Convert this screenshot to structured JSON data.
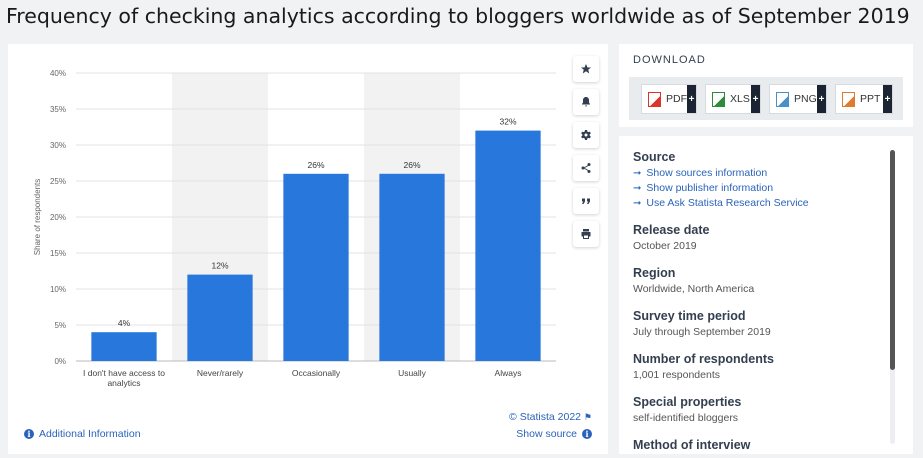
{
  "page": {
    "title": "Frequency of checking analytics according to bloggers worldwide as of September 2019"
  },
  "chart_data": {
    "type": "bar",
    "title": "Frequency of checking analytics according to bloggers worldwide as of September 2019",
    "xlabel": "",
    "ylabel": "Share of respondents",
    "categories": [
      [
        "I don't have access to",
        "analytics"
      ],
      [
        "Never/rarely"
      ],
      [
        "Occasionally"
      ],
      [
        "Usually"
      ],
      [
        "Always"
      ]
    ],
    "values": [
      4,
      12,
      26,
      26,
      32
    ],
    "data_labels": [
      "4%",
      "12%",
      "26%",
      "26%",
      "32%"
    ],
    "ylim": [
      0,
      40
    ],
    "yticks": [
      0,
      5,
      10,
      15,
      20,
      25,
      30,
      35,
      40
    ],
    "ytick_labels": [
      "0%",
      "5%",
      "10%",
      "15%",
      "20%",
      "25%",
      "30%",
      "35%",
      "40%"
    ],
    "grid": true,
    "bar_color": "#2877dc",
    "band_color": "#f2f2f2",
    "legend": "none"
  },
  "chart_card": {
    "copyright": "© Statista 2022",
    "copyright_icon": "flag-icon",
    "additional_info": "Additional Information",
    "show_source": "Show source",
    "tools": [
      {
        "name": "favorite-star-icon"
      },
      {
        "name": "notification-bell-icon"
      },
      {
        "name": "settings-gear-icon"
      },
      {
        "name": "share-icon"
      },
      {
        "name": "cite-quote-icon"
      },
      {
        "name": "print-icon"
      }
    ]
  },
  "download": {
    "title": "DOWNLOAD",
    "buttons": [
      {
        "label": "PDF",
        "color": "#d9362b",
        "plus": "+"
      },
      {
        "label": "XLS",
        "color": "#2e8b3c",
        "plus": "+"
      },
      {
        "label": "PNG",
        "color": "#4a90c8",
        "plus": "+"
      },
      {
        "label": "PPT",
        "color": "#e07b2e",
        "plus": "+"
      }
    ]
  },
  "details": {
    "source": {
      "heading": "Source",
      "links": [
        "Show sources information",
        "Show publisher information",
        "Use Ask Statista Research Service"
      ]
    },
    "release": {
      "heading": "Release date",
      "value": "October 2019"
    },
    "region": {
      "heading": "Region",
      "value": "Worldwide, North America"
    },
    "period": {
      "heading": "Survey time period",
      "value": "July through September 2019"
    },
    "respondents": {
      "heading": "Number of respondents",
      "value": "1,001 respondents"
    },
    "special": {
      "heading": "Special properties",
      "value": "self-identified bloggers"
    },
    "partial_heading": "Method of interview"
  },
  "colors": {
    "accent": "#2a63ba",
    "bar": "#2877dc",
    "dark": "#1b2433"
  }
}
